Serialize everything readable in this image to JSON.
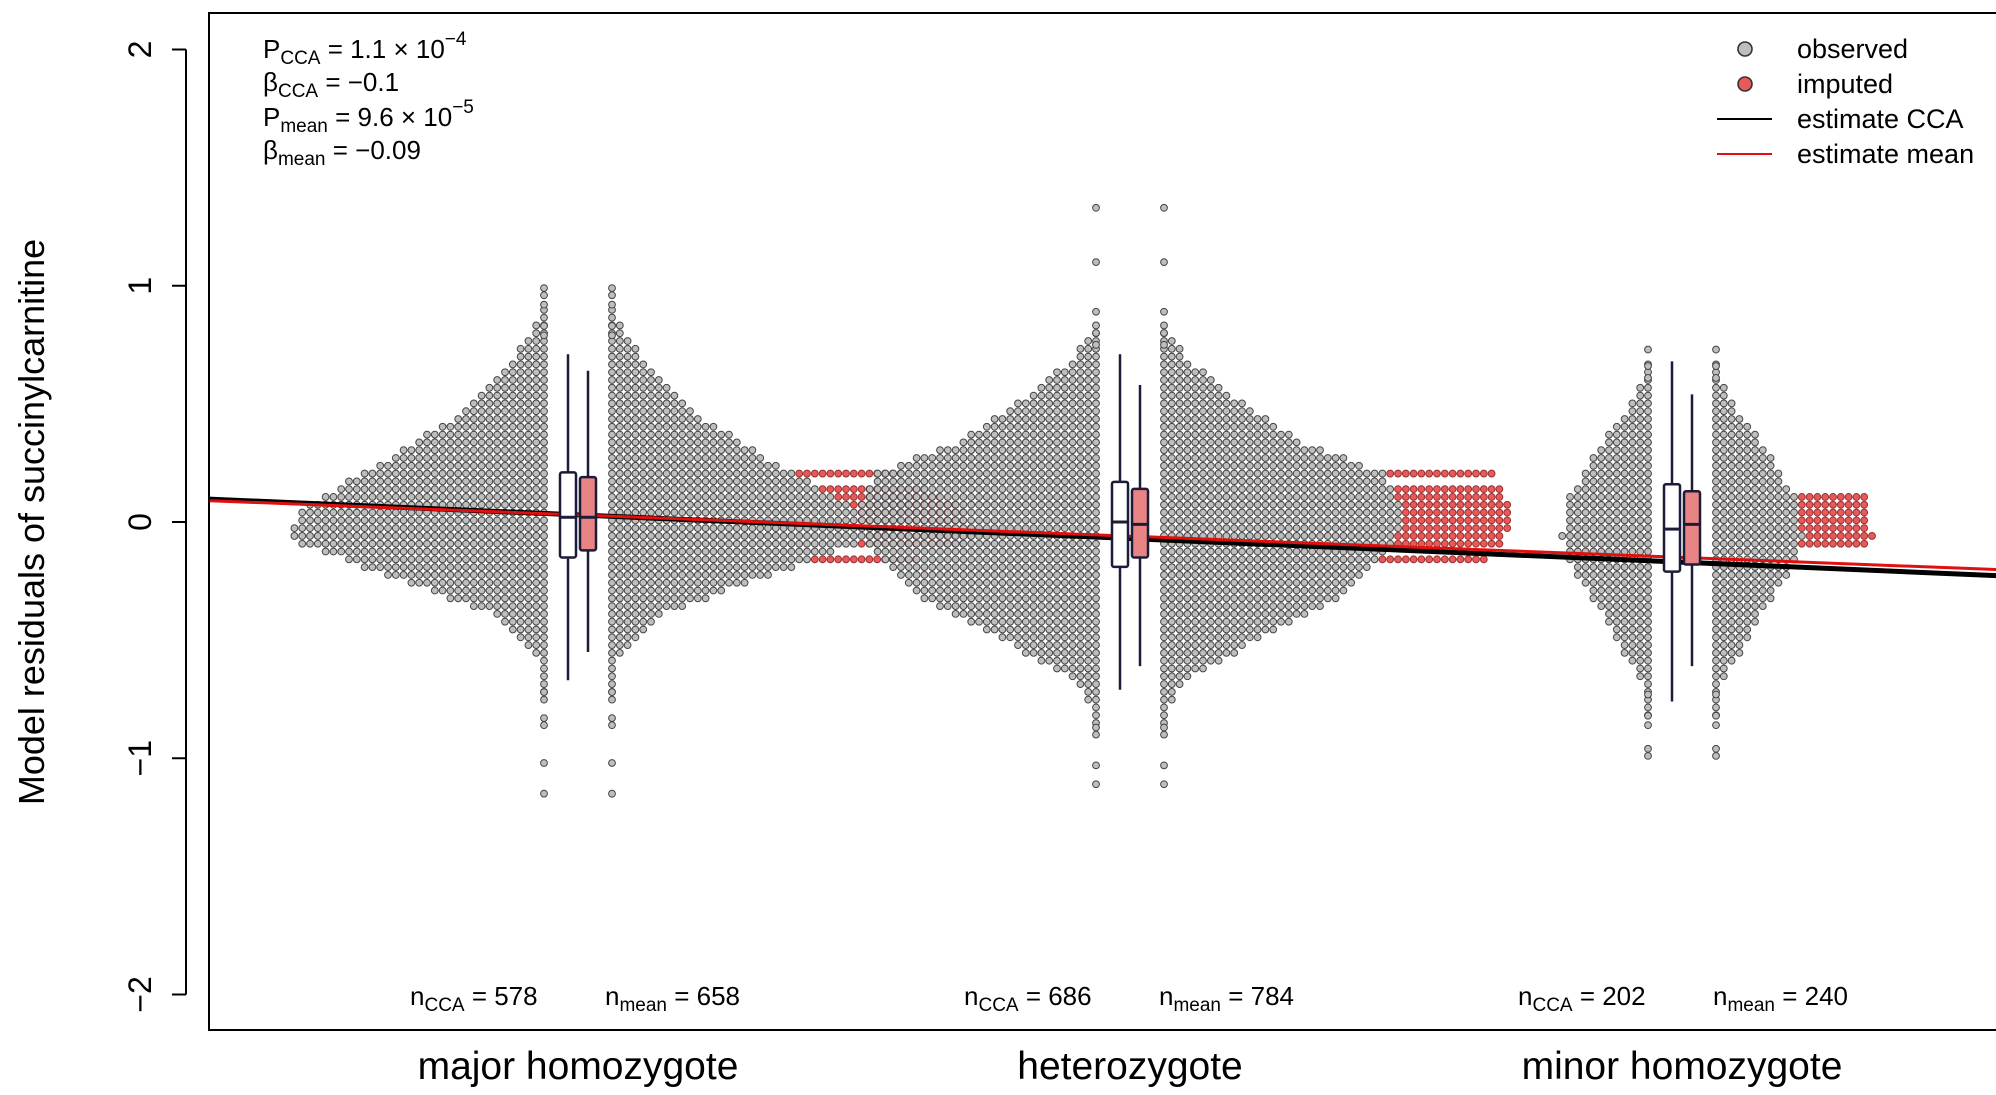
{
  "chart_data": {
    "type": "scatter",
    "subtype": "beeswarm-with-boxplots",
    "ylabel": "Model residuals of succinylcarnitine",
    "ylim": [
      -2.15,
      2.15
    ],
    "yticks": [
      -2,
      -1,
      0,
      1,
      2
    ],
    "ytick_labels": [
      "−2",
      "−1",
      "0",
      "1",
      "2"
    ],
    "categories": [
      "major homozygote",
      "heterozygote",
      "minor homozygote"
    ],
    "stats": [
      {
        "sym": "P",
        "sub": "CCA",
        "eq": " = 1.1 × 10",
        "exp": "−4"
      },
      {
        "sym": "β",
        "sub": "CCA",
        "eq": " = −0.1",
        "exp": ""
      },
      {
        "sym": "P",
        "sub": "mean",
        "eq": " = 9.6 × 10",
        "exp": "−5"
      },
      {
        "sym": "β",
        "sub": "mean",
        "eq": " = −0.09",
        "exp": ""
      }
    ],
    "n_labels": [
      {
        "sym": "n",
        "sub": "CCA",
        "eq": " = 578"
      },
      {
        "sym": "n",
        "sub": "mean",
        "eq": " = 658"
      },
      {
        "sym": "n",
        "sub": "CCA",
        "eq": " = 686"
      },
      {
        "sym": "n",
        "sub": "mean",
        "eq": " = 784"
      },
      {
        "sym": "n",
        "sub": "CCA",
        "eq": " = 202"
      },
      {
        "sym": "n",
        "sub": "mean",
        "eq": " = 240"
      }
    ],
    "legend": {
      "position": "top-right",
      "items": [
        {
          "label": "observed",
          "kind": "point",
          "color": "#bebebe"
        },
        {
          "label": "imputed",
          "kind": "point",
          "color": "#e85a5a"
        },
        {
          "label": "estimate CCA",
          "kind": "line",
          "color": "#000000"
        },
        {
          "label": "estimate mean",
          "kind": "line",
          "color": "#e01010"
        }
      ]
    },
    "regression": {
      "cca": {
        "at_group_1": 0.03,
        "slope": -0.1,
        "color": "#000000"
      },
      "mean": {
        "at_group_1": 0.03,
        "slope": -0.09,
        "color": "#e01010"
      }
    },
    "series": [
      {
        "name": "observed",
        "color": "#bebebe"
      },
      {
        "name": "imputed",
        "color": "#e85a5a"
      }
    ],
    "groups": [
      {
        "name": "major homozygote",
        "n_cca": 578,
        "n_mean": 658,
        "box_cca": {
          "min": -0.67,
          "q1": -0.15,
          "median": 0.02,
          "q3": 0.21,
          "max": 0.71
        },
        "box_mean": {
          "min": -0.55,
          "q1": -0.12,
          "median": 0.02,
          "q3": 0.19,
          "max": 0.64
        },
        "outliers_low": [
          -0.72,
          -0.83,
          -0.86,
          -1.02,
          -1.15
        ],
        "outliers_high": [
          0.79,
          0.83,
          0.92,
          0.96,
          0.99
        ],
        "imputed_values": [
          0.2,
          0.14,
          0.12,
          0.1,
          0.08,
          0.06,
          0.03,
          0.0,
          -0.03,
          -0.05,
          -0.08,
          -0.1,
          -0.15
        ]
      },
      {
        "name": "heterozygote",
        "n_cca": 686,
        "n_mean": 784,
        "box_cca": {
          "min": -0.71,
          "q1": -0.19,
          "median": 0.0,
          "q3": 0.17,
          "max": 0.71
        },
        "box_mean": {
          "min": -0.61,
          "q1": -0.15,
          "median": -0.01,
          "q3": 0.14,
          "max": 0.58
        },
        "outliers_low": [
          -0.87,
          -0.9,
          -1.03,
          -1.11
        ],
        "outliers_high": [
          0.75,
          0.8,
          0.89,
          1.1,
          1.33
        ],
        "imputed_values": [
          0.2,
          0.14,
          0.12,
          0.1,
          0.08,
          0.05,
          0.03,
          0.0,
          -0.02,
          -0.05,
          -0.08,
          -0.1,
          -0.15
        ]
      },
      {
        "name": "minor homozygote",
        "n_cca": 202,
        "n_mean": 240,
        "box_cca": {
          "min": -0.76,
          "q1": -0.21,
          "median": -0.03,
          "q3": 0.16,
          "max": 0.68
        },
        "box_mean": {
          "min": -0.61,
          "q1": -0.18,
          "median": -0.01,
          "q3": 0.13,
          "max": 0.54
        },
        "outliers_low": [
          -0.73,
          -0.82,
          -0.86,
          -0.96,
          -0.99
        ],
        "outliers_high": [
          0.61,
          0.66,
          0.73
        ],
        "imputed_values": [
          0.1,
          0.08,
          0.06,
          0.03,
          0.0,
          -0.03,
          -0.05,
          -0.08,
          -0.1
        ]
      }
    ]
  }
}
